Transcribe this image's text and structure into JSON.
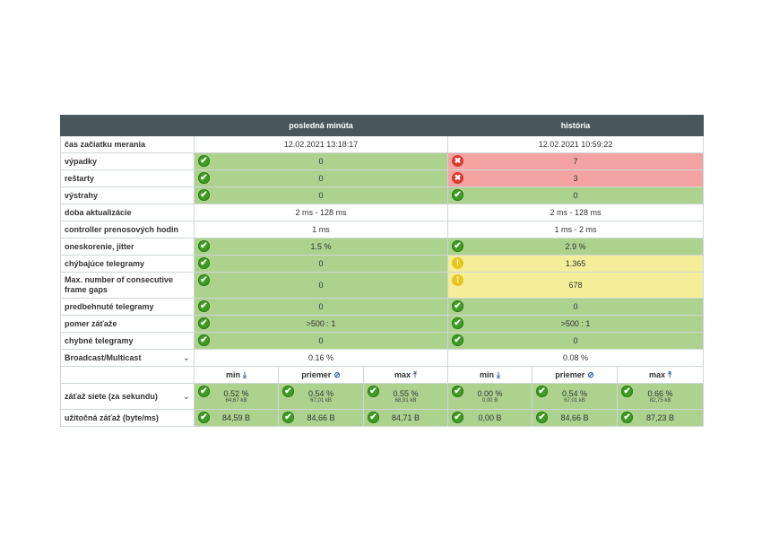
{
  "header": {
    "col1": "posledná minúta",
    "col2": "história"
  },
  "rows": {
    "start": {
      "label": "čas začiatku merania",
      "v1": "12.02.2021 13:18:17",
      "v2": "12.02.2021 10:59:22"
    },
    "outages": {
      "label": "výpadky",
      "v1": "0",
      "v2": "7"
    },
    "restarts": {
      "label": "reštarty",
      "v1": "0",
      "v2": "3"
    },
    "warnings": {
      "label": "výstrahy",
      "v1": "0",
      "v2": "0"
    },
    "update": {
      "label": "doba aktualizácie",
      "v1": "2 ms - 128 ms",
      "v2": "2 ms - 128 ms"
    },
    "controller": {
      "label": "controller prenosových hodin",
      "v1": "1 ms",
      "v2": "1 ms - 2 ms"
    },
    "delay": {
      "label": "oneskorenie, jitter",
      "v1": "1.5 %",
      "v2": "2.9 %"
    },
    "missing": {
      "label": "chýbajúce telegramy",
      "v1": "0",
      "v2": "1.365"
    },
    "gaps": {
      "label": "Max. number of consecutive frame gaps",
      "v1": "0",
      "v2": "678"
    },
    "overtaken": {
      "label": "predbehnuté telegramy",
      "v1": "0",
      "v2": "0"
    },
    "loadratio": {
      "label": "pomer záťaže",
      "v1": ">500 : 1",
      "v2": ">500 : 1"
    },
    "faulty": {
      "label": "chybné telegramy",
      "v1": "0",
      "v2": "0"
    },
    "broadcast": {
      "label": "Broadcast/Multicast",
      "v1": "0.16 %",
      "v2": "0.08 %"
    }
  },
  "stats_header": {
    "min": "min",
    "avg": "priemer",
    "max": "max"
  },
  "netload": {
    "label": "záťaž siete (za sekundu)",
    "last": [
      {
        "pct": "0.52 %",
        "kb": "64,67 kB"
      },
      {
        "pct": "0.54 %",
        "kb": "67,01 kB"
      },
      {
        "pct": "0.55 %",
        "kb": "68,91 kB"
      }
    ],
    "hist": [
      {
        "pct": "0.00 %",
        "kb": "0,00 B"
      },
      {
        "pct": "0.54 %",
        "kb": "67,01 kB"
      },
      {
        "pct": "0.66 %",
        "kb": "82,75 kB"
      }
    ]
  },
  "payload": {
    "label": "užitočná záťaž (byte/ms)",
    "last": [
      "84,59 B",
      "84,66 B",
      "84,71 B"
    ],
    "hist": [
      "0,00 B",
      "84,66 B",
      "87,23 B"
    ]
  },
  "icons": {
    "ok": "✔",
    "err": "✖",
    "warn": "!",
    "chevron": "⌄",
    "down": "⤓",
    "avg": "⊘",
    "up": "⤒"
  }
}
